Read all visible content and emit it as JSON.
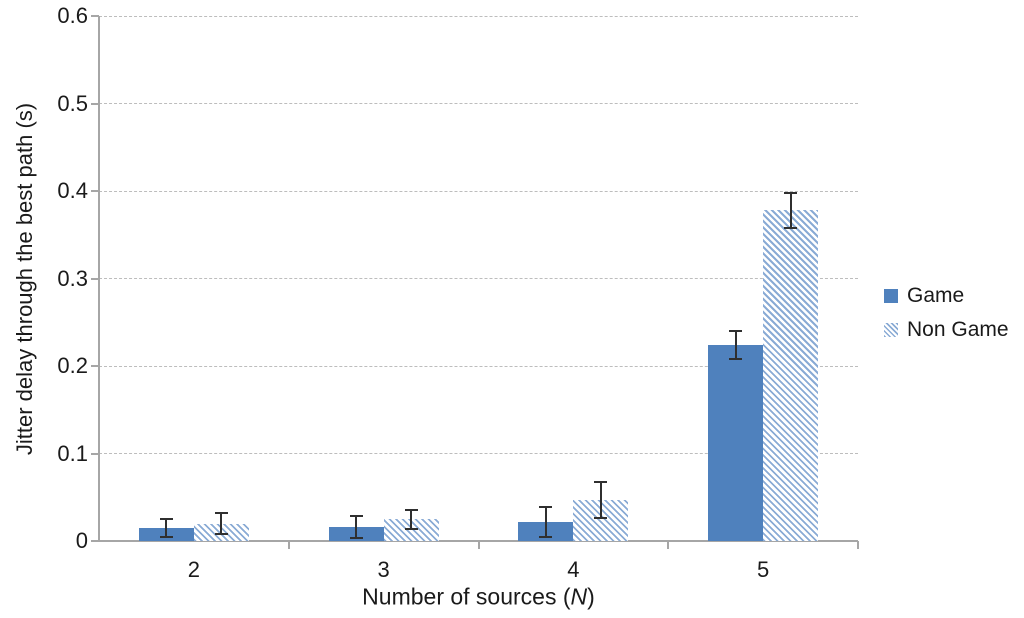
{
  "chart_data": {
    "type": "bar",
    "title": "",
    "xlabel": "Number of sources (N)",
    "xlabel_prefix": "Number of sources (",
    "xlabel_italic": "N",
    "xlabel_suffix": ")",
    "ylabel": "Jitter delay through the best path (s)",
    "categories": [
      "2",
      "3",
      "4",
      "5"
    ],
    "series": [
      {
        "name": "Game",
        "fill": "solid",
        "color": "#4F81BD",
        "values": [
          0.015,
          0.016,
          0.022,
          0.224
        ],
        "errors": [
          0.01,
          0.013,
          0.017,
          0.016
        ]
      },
      {
        "name": "Non Game",
        "fill": "hatched",
        "color": "#8AABD5",
        "values": [
          0.02,
          0.025,
          0.047,
          0.378
        ],
        "errors": [
          0.012,
          0.011,
          0.021,
          0.02
        ]
      }
    ],
    "ylim": [
      0,
      0.6
    ],
    "ytick_step": 0.1,
    "ytick_labels": [
      "0",
      "0.1",
      "0.2",
      "0.3",
      "0.4",
      "0.5",
      "0.6"
    ],
    "grid": "horizontal-dashed",
    "error_bars": true,
    "legend_position": "right-middle",
    "colors": {
      "axis": "#A6A6A6",
      "gridline": "#BDBDBD",
      "error_bar": "#2F2F2F",
      "text": "#1A1A1A",
      "background": "#FFFFFF"
    }
  }
}
